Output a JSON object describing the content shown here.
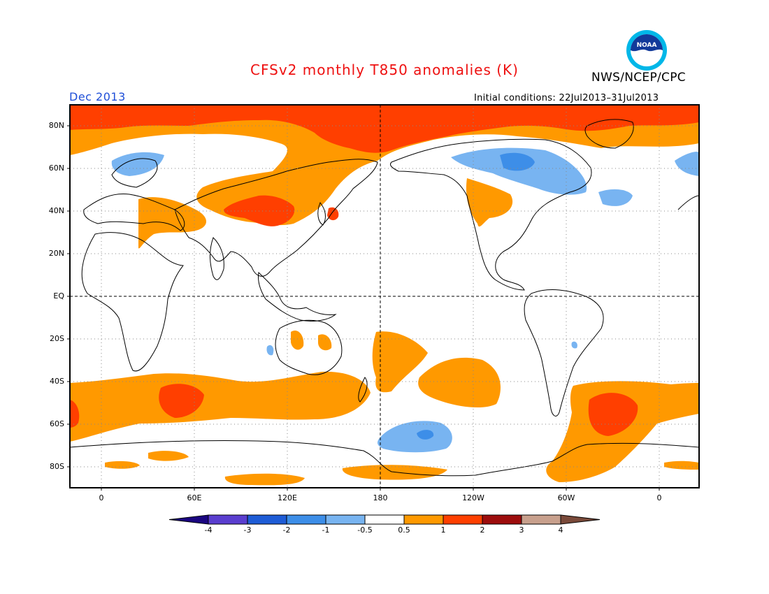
{
  "header": {
    "title": "CFSv2 monthly T850 anomalies (K)",
    "title_color": "#ee1111",
    "agency": "NWS/NCEP/CPC",
    "month_label": "Dec 2013",
    "month_color": "#1f4fd8",
    "initial_conditions": "Initial conditions: 22Jul2013–31Jul2013"
  },
  "logo": {
    "icon": "noaa-logo",
    "text": "NOAA"
  },
  "map": {
    "projection": "plate-carree",
    "center_longitude": 180,
    "lon_range": [
      -20,
      380
    ],
    "lat_range": [
      -90,
      90
    ],
    "grid": "dotted",
    "y_axis_labels": [
      "80N",
      "60N",
      "40N",
      "20N",
      "EQ",
      "20S",
      "40S",
      "60S",
      "80S"
    ],
    "x_axis_labels": [
      "0",
      "60E",
      "120E",
      "180",
      "120W",
      "60W",
      "0"
    ],
    "reference_lines": [
      "equator",
      "date-line"
    ]
  },
  "colorbar": {
    "ticks": [
      "-4",
      "-3",
      "-2",
      "-1",
      "-0.5",
      "0.5",
      "1",
      "2",
      "3",
      "4"
    ],
    "colors": [
      "#1a0580",
      "#5a3ecf",
      "#1e5cd6",
      "#3d8ee8",
      "#78b4f1",
      "#ffffff",
      "#ff9900",
      "#ff3f00",
      "#9d0d0d",
      "#c8a08d",
      "#7a4a3a"
    ]
  },
  "chart_data": {
    "type": "map-contour",
    "variable": "T850 anomalies (K)",
    "levels": [
      -4,
      -3,
      -2,
      -1,
      -0.5,
      0.5,
      1,
      2,
      3,
      4
    ],
    "regions": [
      {
        "label": "arctic-warm",
        "level": 1,
        "anomaly_range": [
          1,
          2
        ]
      },
      {
        "label": "north-pacific-siberia-warm",
        "level": 0.5,
        "anomaly_range": [
          0.5,
          1
        ]
      },
      {
        "label": "mongolia-china-warm-core",
        "level": 1,
        "anomaly_range": [
          1,
          2
        ]
      },
      {
        "label": "canada-cold",
        "level": -0.5,
        "anomaly_range": [
          -1,
          -0.5
        ]
      },
      {
        "label": "north-atlantic-cold",
        "level": -0.5,
        "anomaly_range": [
          -1,
          -0.5
        ]
      },
      {
        "label": "scandinavia-cold",
        "level": -0.5,
        "anomaly_range": [
          -1,
          -0.5
        ]
      },
      {
        "label": "southern-ocean-warm-indian",
        "level": 1,
        "anomaly_range": [
          1,
          2
        ]
      },
      {
        "label": "southern-ocean-warm-atlantic",
        "level": 1,
        "anomaly_range": [
          1,
          2
        ]
      },
      {
        "label": "south-pacific-cold",
        "level": -0.5,
        "anomaly_range": [
          -1,
          -0.5
        ]
      }
    ]
  }
}
